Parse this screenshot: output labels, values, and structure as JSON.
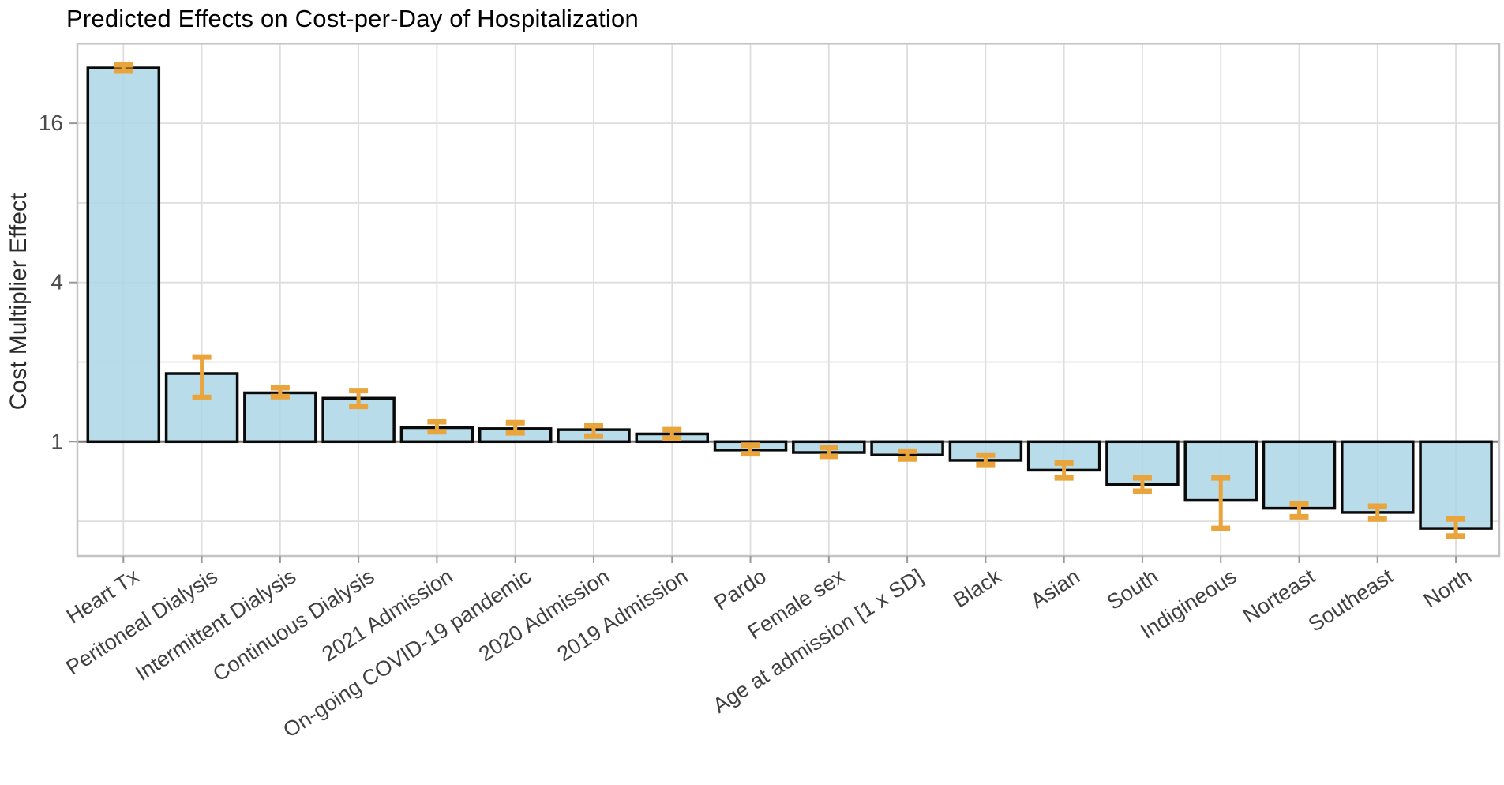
{
  "figure": {
    "title": "Predicted Effects on Cost-per-Day of Hospitalization",
    "y_axis_label": "Cost Multiplier Effect"
  },
  "chart_data": {
    "type": "bar",
    "title": "Predicted Effects on Cost-per-Day of Hospitalization",
    "xlabel": "",
    "ylabel": "Cost Multiplier Effect",
    "y_scale": "log2",
    "ylim": [
      0.37,
      32
    ],
    "ytick_labels": [
      "1",
      "4",
      "16"
    ],
    "ytick_values": [
      1,
      4,
      16
    ],
    "gridlines_y": [
      0.5,
      2,
      4,
      8,
      16
    ],
    "baseline_value": 1,
    "grid": true,
    "legend": false,
    "categories": [
      "Heart Tx",
      "Peritoneal Dialysis",
      "Intermittent Dialysis",
      "Continuous Dialysis",
      "2021 Admission",
      "On-going COVID-19 pandemic",
      "2020 Admission",
      "2019 Admission",
      "Pardo",
      "Female sex",
      "Age at admission [1 x SD]",
      "Black",
      "Asian",
      "South",
      "Indigineous",
      "Norteast",
      "Southeast",
      "North"
    ],
    "series": [
      {
        "name": "Cost multiplier effect",
        "values": [
          25.9,
          1.81,
          1.53,
          1.46,
          1.13,
          1.12,
          1.11,
          1.07,
          0.93,
          0.91,
          0.89,
          0.85,
          0.78,
          0.69,
          0.6,
          0.56,
          0.54,
          0.47
        ],
        "ci_low": [
          25.2,
          1.47,
          1.48,
          1.36,
          1.09,
          1.08,
          1.05,
          1.03,
          0.9,
          0.88,
          0.86,
          0.82,
          0.73,
          0.65,
          0.47,
          0.52,
          0.51,
          0.44
        ],
        "ci_high": [
          26.6,
          2.09,
          1.6,
          1.56,
          1.19,
          1.18,
          1.15,
          1.11,
          0.97,
          0.95,
          0.92,
          0.89,
          0.83,
          0.73,
          0.73,
          0.58,
          0.57,
          0.51
        ]
      }
    ],
    "colors": {
      "bar_fill": "#ADD6E8",
      "bar_fill_alpha": 0.85,
      "bar_border": "#0a0a0a",
      "error_bar": "#E9A43C",
      "baseline": "#7a7a7a",
      "gridline": "#dedede",
      "panel_border": "#c4c4c4",
      "tick": "#999999",
      "tick_label": "#404040",
      "y_tick_label": "#4d4d4d"
    }
  }
}
